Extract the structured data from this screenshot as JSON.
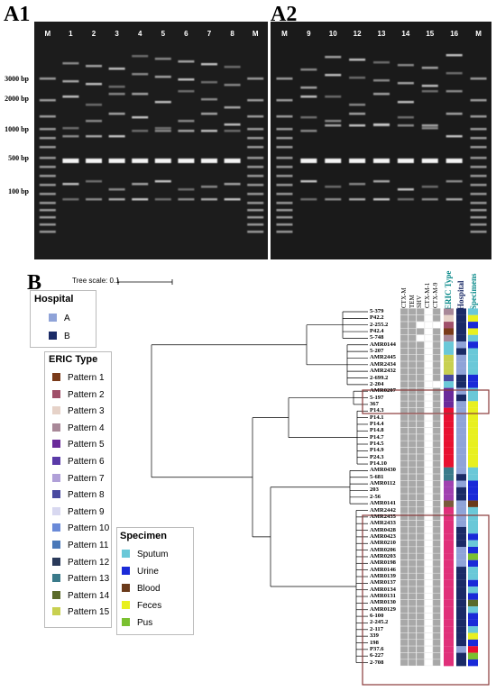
{
  "panels": {
    "a1": "A1",
    "a2": "A2",
    "b": "B"
  },
  "gel": {
    "a1_lanes": [
      "M",
      "1",
      "2",
      "3",
      "4",
      "5",
      "6",
      "7",
      "8",
      "M"
    ],
    "a2_lanes": [
      "M",
      "9",
      "10",
      "12",
      "13",
      "14",
      "15",
      "16",
      "M"
    ],
    "size_markers": [
      "3000 bp",
      "2000 bp",
      "1000 bp",
      "500 bp",
      "100 bp"
    ]
  },
  "tree": {
    "scale_label": "Tree scale: 0.1"
  },
  "columns": {
    "genes": [
      "CTX-M",
      "TEM",
      "SHV",
      "CTX-M-1",
      "CTX-M-9"
    ],
    "eric": "ERIC Type",
    "hospital": "Hospital",
    "specimens": "Specimens"
  },
  "legend_hospital": {
    "title": "Hospital",
    "items": [
      {
        "label": "A",
        "color": "#8fa3d8"
      },
      {
        "label": "B",
        "color": "#1a2a66"
      }
    ]
  },
  "legend_eric": {
    "title": "ERIC Type",
    "items": [
      {
        "label": "Pattern 1",
        "color": "#7a3b1a"
      },
      {
        "label": "Pattern 2",
        "color": "#a0506a"
      },
      {
        "label": "Pattern 3",
        "color": "#e6d2c8"
      },
      {
        "label": "Pattern 4",
        "color": "#a88898"
      },
      {
        "label": "Pattern 5",
        "color": "#6a2a9a"
      },
      {
        "label": "Pattern 6",
        "color": "#5a3aa8"
      },
      {
        "label": "Pattern 7",
        "color": "#b0a0d8"
      },
      {
        "label": "Pattern 8",
        "color": "#4a4aa0"
      },
      {
        "label": "Pattern 9",
        "color": "#d8d8f0"
      },
      {
        "label": "Pattern 10",
        "color": "#6a8ad8"
      },
      {
        "label": "Pattern 11",
        "color": "#4a78b8"
      },
      {
        "label": "Pattern 12",
        "color": "#2a3a5a"
      },
      {
        "label": "Pattern 13",
        "color": "#3a7a8a"
      },
      {
        "label": "Pattern 14",
        "color": "#5a6a2a"
      },
      {
        "label": "Pattern 15",
        "color": "#c8d050"
      }
    ]
  },
  "legend_specimen": {
    "title": "Specimen",
    "items": [
      {
        "label": "Sputum",
        "color": "#6ac8d8"
      },
      {
        "label": "Urine",
        "color": "#1a2ad8"
      },
      {
        "label": "Blood",
        "color": "#6a3a1a"
      },
      {
        "label": "Feces",
        "color": "#e8f020"
      },
      {
        "label": "Pus",
        "color": "#7ac030"
      }
    ]
  },
  "isolates": [
    {
      "id": "5-379",
      "genes": [
        1,
        1,
        1,
        0,
        1
      ],
      "eric": "#a88898",
      "hosp": "#1a2a66",
      "spec": "#6ac8d8"
    },
    {
      "id": "P42.2",
      "genes": [
        1,
        1,
        1,
        0,
        1
      ],
      "eric": "#e6d2c8",
      "hosp": "#1a2a66",
      "spec": "#e8f020"
    },
    {
      "id": "2-255.2",
      "genes": [
        1,
        1,
        0,
        0,
        0
      ],
      "eric": "#a0506a",
      "hosp": "#1a2a66",
      "spec": "#1a2ad8"
    },
    {
      "id": "P42.4",
      "genes": [
        1,
        1,
        1,
        0,
        1
      ],
      "eric": "#7a3b1a",
      "hosp": "#1a2a66",
      "spec": "#e8f020"
    },
    {
      "id": "5-748",
      "genes": [
        1,
        1,
        0,
        0,
        1
      ],
      "eric": "#a88898",
      "hosp": "#1a2a66",
      "spec": "#6ac8d8"
    },
    {
      "id": "AMR0144",
      "genes": [
        1,
        1,
        1,
        0,
        1
      ],
      "eric": "#6ac8d8",
      "hosp": "#8fa3d8",
      "spec": "#1a2ad8"
    },
    {
      "id": "5-207",
      "genes": [
        1,
        1,
        1,
        0,
        1
      ],
      "eric": "#6ac8d8",
      "hosp": "#1a2a66",
      "spec": "#6ac8d8"
    },
    {
      "id": "AMR2445",
      "genes": [
        1,
        1,
        1,
        0,
        1
      ],
      "eric": "#c8d050",
      "hosp": "#8fa3d8",
      "spec": "#6ac8d8"
    },
    {
      "id": "AMR2434",
      "genes": [
        1,
        1,
        1,
        0,
        1
      ],
      "eric": "#c8d050",
      "hosp": "#8fa3d8",
      "spec": "#6ac8d8"
    },
    {
      "id": "AMR2432",
      "genes": [
        1,
        1,
        1,
        0,
        1
      ],
      "eric": "#c8d050",
      "hosp": "#8fa3d8",
      "spec": "#6ac8d8"
    },
    {
      "id": "2-699.2",
      "genes": [
        1,
        1,
        1,
        0,
        1
      ],
      "eric": "#4a4aa0",
      "hosp": "#1a2a66",
      "spec": "#1a2ad8"
    },
    {
      "id": "2-204",
      "genes": [
        1,
        1,
        1,
        0,
        0
      ],
      "eric": "#6ac8d8",
      "hosp": "#1a2a66",
      "spec": "#1a2ad8"
    },
    {
      "id": "AMR0207",
      "genes": [
        1,
        1,
        1,
        0,
        1
      ],
      "eric": "#6a2a9a",
      "hosp": "#8fa3d8",
      "spec": "#6ac8d8"
    },
    {
      "id": "5-197",
      "genes": [
        1,
        1,
        1,
        0,
        1
      ],
      "eric": "#6a2a9a",
      "hosp": "#1a2a66",
      "spec": "#6ac8d8"
    },
    {
      "id": "367",
      "genes": [
        1,
        1,
        1,
        0,
        1
      ],
      "eric": "#6a2a9a",
      "hosp": "#8fa3d8",
      "spec": "#e8f020"
    },
    {
      "id": "P14.3",
      "genes": [
        1,
        1,
        1,
        0,
        1
      ],
      "eric": "#e81030",
      "hosp": "#8fa3d8",
      "spec": "#e8f020"
    },
    {
      "id": "P14.1",
      "genes": [
        1,
        1,
        1,
        0,
        1
      ],
      "eric": "#e81030",
      "hosp": "#8fa3d8",
      "spec": "#e8f020"
    },
    {
      "id": "P14.4",
      "genes": [
        1,
        1,
        1,
        0,
        1
      ],
      "eric": "#e81030",
      "hosp": "#8fa3d8",
      "spec": "#e8f020"
    },
    {
      "id": "P14.8",
      "genes": [
        1,
        1,
        1,
        0,
        1
      ],
      "eric": "#e81030",
      "hosp": "#8fa3d8",
      "spec": "#e8f020"
    },
    {
      "id": "P14.7",
      "genes": [
        1,
        1,
        1,
        0,
        1
      ],
      "eric": "#e81030",
      "hosp": "#8fa3d8",
      "spec": "#e8f020"
    },
    {
      "id": "P14.5",
      "genes": [
        1,
        1,
        1,
        0,
        1
      ],
      "eric": "#e81030",
      "hosp": "#8fa3d8",
      "spec": "#e8f020"
    },
    {
      "id": "P14.9",
      "genes": [
        1,
        1,
        1,
        0,
        1
      ],
      "eric": "#e81030",
      "hosp": "#8fa3d8",
      "spec": "#e8f020"
    },
    {
      "id": "P24.3",
      "genes": [
        1,
        1,
        1,
        0,
        1
      ],
      "eric": "#e81030",
      "hosp": "#8fa3d8",
      "spec": "#e8f020"
    },
    {
      "id": "P14.10",
      "genes": [
        1,
        1,
        1,
        0,
        1
      ],
      "eric": "#e81030",
      "hosp": "#8fa3d8",
      "spec": "#e8f020"
    },
    {
      "id": "AMR0430",
      "genes": [
        1,
        1,
        1,
        0,
        1
      ],
      "eric": "#3a7a8a",
      "hosp": "#8fa3d8",
      "spec": "#6ac8d8"
    },
    {
      "id": "5-681",
      "genes": [
        1,
        1,
        1,
        0,
        1
      ],
      "eric": "#3a7a8a",
      "hosp": "#1a2a66",
      "spec": "#6ac8d8"
    },
    {
      "id": "AMR0112",
      "genes": [
        1,
        1,
        1,
        0,
        1
      ],
      "eric": "#a040b0",
      "hosp": "#8fa3d8",
      "spec": "#1a2ad8"
    },
    {
      "id": "203",
      "genes": [
        1,
        1,
        1,
        0,
        1
      ],
      "eric": "#a040b0",
      "hosp": "#1a2a66",
      "spec": "#1a2ad8"
    },
    {
      "id": "2-56",
      "genes": [
        1,
        1,
        1,
        0,
        1
      ],
      "eric": "#a040b0",
      "hosp": "#1a2a66",
      "spec": "#1a2ad8"
    },
    {
      "id": "AMR0141",
      "genes": [
        1,
        1,
        1,
        0,
        1
      ],
      "eric": "#7a5a3a",
      "hosp": "#8fa3d8",
      "spec": "#6a3a1a"
    },
    {
      "id": "AMR2442",
      "genes": [
        1,
        1,
        1,
        0,
        1
      ],
      "eric": "#e0307a",
      "hosp": "#8fa3d8",
      "spec": "#6ac8d8"
    },
    {
      "id": "AMR2435",
      "genes": [
        1,
        1,
        1,
        0,
        1
      ],
      "eric": "#e0307a",
      "hosp": "#8fa3d8",
      "spec": "#6ac8d8"
    },
    {
      "id": "AMR2433",
      "genes": [
        1,
        1,
        1,
        0,
        1
      ],
      "eric": "#e0307a",
      "hosp": "#8fa3d8",
      "spec": "#6ac8d8"
    },
    {
      "id": "AMR0428",
      "genes": [
        1,
        1,
        1,
        0,
        1
      ],
      "eric": "#e0307a",
      "hosp": "#1a2a66",
      "spec": "#6ac8d8"
    },
    {
      "id": "AMR0423",
      "genes": [
        1,
        1,
        1,
        0,
        1
      ],
      "eric": "#e0307a",
      "hosp": "#1a2a66",
      "spec": "#1a2ad8"
    },
    {
      "id": "AMR0210",
      "genes": [
        1,
        1,
        1,
        0,
        1
      ],
      "eric": "#e0307a",
      "hosp": "#1a2a66",
      "spec": "#6ac8d8"
    },
    {
      "id": "AMR0206",
      "genes": [
        1,
        1,
        1,
        0,
        1
      ],
      "eric": "#e0307a",
      "hosp": "#8fa3d8",
      "spec": "#1a2ad8"
    },
    {
      "id": "AMR0203",
      "genes": [
        1,
        1,
        1,
        0,
        1
      ],
      "eric": "#e0307a",
      "hosp": "#8fa3d8",
      "spec": "#7ac030"
    },
    {
      "id": "AMR0198",
      "genes": [
        1,
        1,
        1,
        0,
        1
      ],
      "eric": "#e0307a",
      "hosp": "#8fa3d8",
      "spec": "#1a2ad8"
    },
    {
      "id": "AMR0146",
      "genes": [
        1,
        1,
        1,
        0,
        1
      ],
      "eric": "#e0307a",
      "hosp": "#1a2a66",
      "spec": "#6ac8d8"
    },
    {
      "id": "AMR0139",
      "genes": [
        1,
        1,
        1,
        0,
        1
      ],
      "eric": "#e0307a",
      "hosp": "#1a2a66",
      "spec": "#6ac8d8"
    },
    {
      "id": "AMR0137",
      "genes": [
        1,
        1,
        1,
        0,
        1
      ],
      "eric": "#e0307a",
      "hosp": "#1a2a66",
      "spec": "#1a2ad8"
    },
    {
      "id": "AMR0134",
      "genes": [
        1,
        1,
        1,
        0,
        1
      ],
      "eric": "#e0307a",
      "hosp": "#1a2a66",
      "spec": "#6ac8d8"
    },
    {
      "id": "AMR0131",
      "genes": [
        1,
        1,
        1,
        0,
        1
      ],
      "eric": "#e0307a",
      "hosp": "#1a2a66",
      "spec": "#1a2ad8"
    },
    {
      "id": "AMR0130",
      "genes": [
        1,
        1,
        1,
        0,
        1
      ],
      "eric": "#e0307a",
      "hosp": "#1a2a66",
      "spec": "#5a6a2a"
    },
    {
      "id": "AMR0129",
      "genes": [
        1,
        1,
        1,
        0,
        1
      ],
      "eric": "#e0307a",
      "hosp": "#1a2a66",
      "spec": "#6ac8d8"
    },
    {
      "id": "6-100",
      "genes": [
        1,
        1,
        1,
        0,
        1
      ],
      "eric": "#e0307a",
      "hosp": "#1a2a66",
      "spec": "#1a2ad8"
    },
    {
      "id": "2-245.2",
      "genes": [
        1,
        1,
        1,
        0,
        1
      ],
      "eric": "#e0307a",
      "hosp": "#1a2a66",
      "spec": "#1a2ad8"
    },
    {
      "id": "2-117",
      "genes": [
        1,
        1,
        1,
        0,
        1
      ],
      "eric": "#e0307a",
      "hosp": "#1a2a66",
      "spec": "#6ac8d8"
    },
    {
      "id": "339",
      "genes": [
        1,
        1,
        1,
        0,
        1
      ],
      "eric": "#e0307a",
      "hosp": "#1a2a66",
      "spec": "#e8f020"
    },
    {
      "id": "198",
      "genes": [
        1,
        1,
        1,
        0,
        1
      ],
      "eric": "#e0307a",
      "hosp": "#1a2a66",
      "spec": "#1a2ad8"
    },
    {
      "id": "P37.6",
      "genes": [
        1,
        1,
        1,
        0,
        1
      ],
      "eric": "#e0307a",
      "hosp": "#8fa3d8",
      "spec": "#e81030"
    },
    {
      "id": "6-227",
      "genes": [
        1,
        1,
        1,
        0,
        1
      ],
      "eric": "#e0307a",
      "hosp": "#1a2a66",
      "spec": "#7ac030"
    },
    {
      "id": "2-708",
      "genes": [
        1,
        1,
        1,
        0,
        1
      ],
      "eric": "#e0307a",
      "hosp": "#1a2a66",
      "spec": "#1a2ad8"
    }
  ]
}
